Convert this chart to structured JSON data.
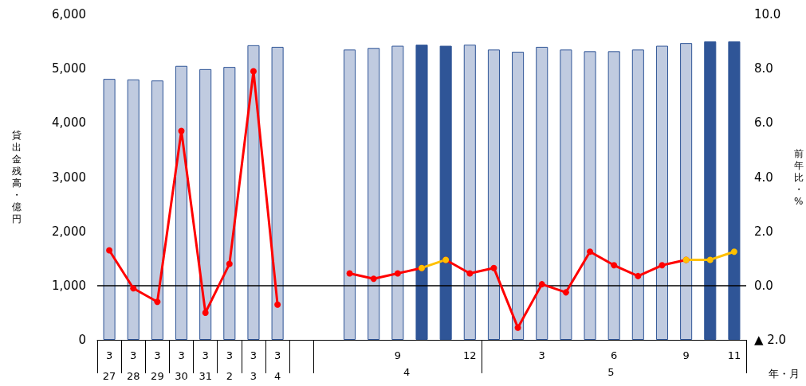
{
  "chart_data": {
    "type": "bar",
    "categories": [
      "3\n27",
      "3\n28",
      "3\n29",
      "3\n30",
      "3\n31",
      "3\n2",
      "3\n3",
      "3\n4",
      null,
      null,
      null,
      null,
      "9",
      null,
      null,
      "12",
      null,
      null,
      "3",
      null,
      null,
      "6",
      null,
      null,
      "9",
      null,
      "11"
    ],
    "ylabel": "貸出金残高・億円",
    "y2label": "前年比・%",
    "ylim": [
      0,
      6000
    ],
    "yticks": [
      {
        "value": 0,
        "label": "0"
      },
      {
        "value": 1000,
        "label": "1,000"
      },
      {
        "value": 2000,
        "label": "2,000"
      },
      {
        "value": 3000,
        "label": "3,000"
      },
      {
        "value": 4000,
        "label": "4,000"
      },
      {
        "value": 5000,
        "label": "5,000"
      },
      {
        "value": 6000,
        "label": "6,000"
      }
    ],
    "y2lim": [
      -2,
      10
    ],
    "y2ticks": [
      {
        "value": -2,
        "label": "▲ 2.0"
      },
      {
        "value": 0,
        "label": "0.0"
      },
      {
        "value": 2,
        "label": "2.0"
      },
      {
        "value": 4,
        "label": "4.0"
      },
      {
        "value": 6,
        "label": "6.0"
      },
      {
        "value": 8,
        "label": "8.0"
      },
      {
        "value": 10,
        "label": "10.0"
      }
    ],
    "ref_lines": [
      {
        "axis": "y2",
        "value": 0,
        "color": "#000000"
      }
    ],
    "annotations": [
      "4",
      "5",
      "年・月"
    ],
    "marker": "circle",
    "series": [
      {
        "colors": [
          "#c0cbe0",
          "#c0cbe0",
          "#c0cbe0",
          "#c0cbe0",
          "#c0cbe0",
          "#c0cbe0",
          "#c0cbe0",
          "#c0cbe0",
          "#c0cbe0",
          "#c0cbe0",
          "#c0cbe0",
          "#c0cbe0",
          "#c0cbe0",
          "#2f5597",
          "#2f5597",
          "#c0cbe0",
          "#c0cbe0",
          "#c0cbe0",
          "#c0cbe0",
          "#c0cbe0",
          "#c0cbe0",
          "#c0cbe0",
          "#c0cbe0",
          "#c0cbe0",
          "#c0cbe0",
          "#2f5597",
          "#2f5597"
        ],
        "values": [
          4810,
          4800,
          4780,
          5050,
          4990,
          5030,
          5430,
          5400,
          null,
          null,
          5350,
          5380,
          5420,
          5440,
          5420,
          5440,
          5350,
          5310,
          5400,
          5350,
          5320,
          5320,
          5350,
          5420,
          5470,
          5500,
          5500
        ]
      },
      {
        "type": "line",
        "axis": "y2",
        "color": "#ff0000",
        "values": [
          1.3,
          -0.1,
          -0.6,
          5.7,
          -1.0,
          0.8,
          7.9,
          -0.7,
          null,
          null,
          null,
          null,
          null,
          null,
          null,
          null,
          null,
          null,
          null,
          null,
          null,
          null,
          null,
          null,
          null,
          null,
          null
        ]
      },
      {
        "type": "line",
        "axis": "y2",
        "color": "#ff0000",
        "values": [
          null,
          null,
          null,
          null,
          null,
          null,
          null,
          null,
          null,
          null,
          0.45,
          0.25,
          0.45,
          0.65,
          null,
          null,
          null,
          null,
          null,
          null,
          null,
          null,
          null,
          null,
          null,
          null,
          null
        ]
      },
      {
        "type": "line",
        "axis": "y2",
        "color": "#ff0000",
        "values": [
          null,
          null,
          null,
          null,
          null,
          null,
          null,
          null,
          null,
          null,
          null,
          null,
          null,
          null,
          0.95,
          0.45,
          0.65,
          -1.55,
          0.05,
          -0.25,
          1.25,
          0.75,
          0.35,
          0.75,
          0.95,
          null,
          null
        ]
      },
      {
        "type": "line",
        "axis": "y2",
        "color": "#ffc000",
        "values": [
          null,
          null,
          null,
          null,
          null,
          null,
          null,
          null,
          null,
          null,
          null,
          null,
          null,
          0.65,
          0.95,
          null,
          null,
          null,
          null,
          null,
          null,
          null,
          null,
          null,
          null,
          null,
          null
        ]
      },
      {
        "type": "line",
        "axis": "y2",
        "color": "#ffc000",
        "values": [
          null,
          null,
          null,
          null,
          null,
          null,
          null,
          null,
          null,
          null,
          null,
          null,
          null,
          null,
          null,
          null,
          null,
          null,
          null,
          null,
          null,
          null,
          null,
          null,
          0.95,
          0.95,
          1.25
        ]
      }
    ]
  }
}
